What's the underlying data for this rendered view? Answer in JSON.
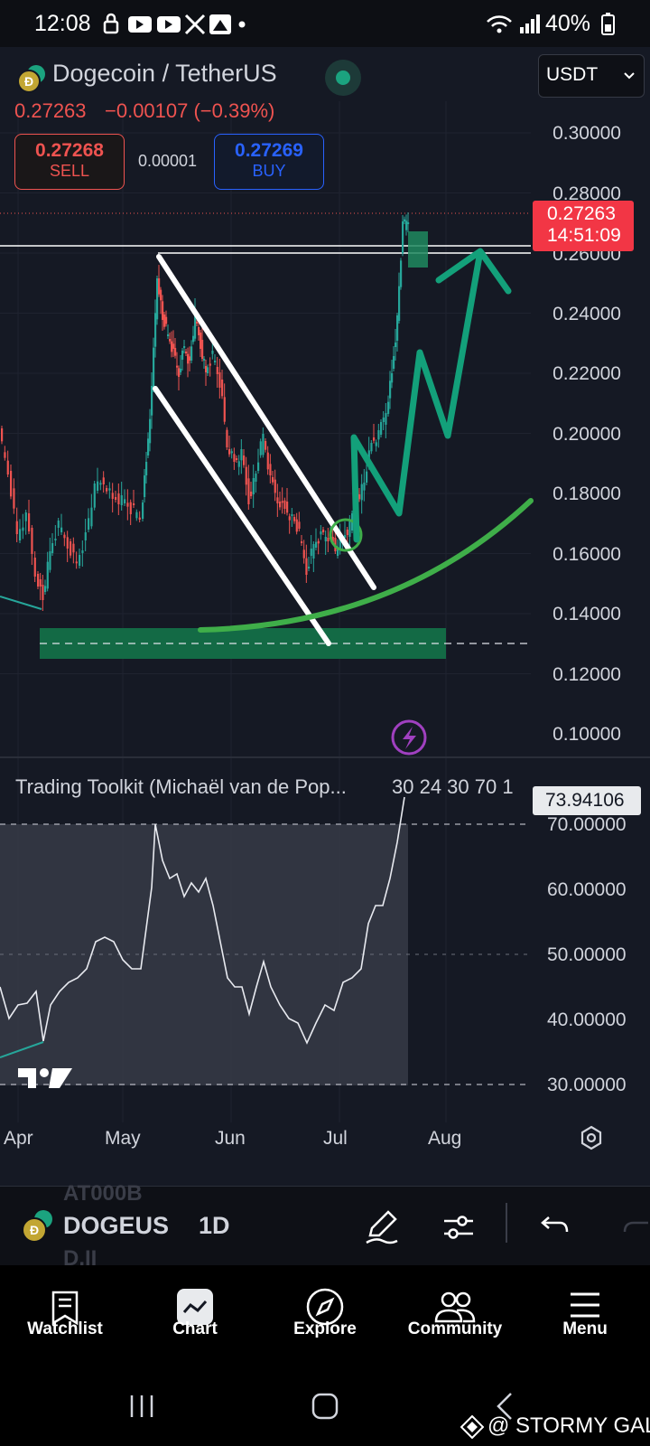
{
  "status": {
    "time": "12:08",
    "battery": "40%"
  },
  "header": {
    "symbol_title": "Dogecoin / TetherUS",
    "last_price": "0.27263",
    "change": "−0.00107 (−0.39%)",
    "currency": "USDT",
    "sell_price": "0.27268",
    "sell_label": "SELL",
    "spread": "0.00001",
    "buy_price": "0.27269",
    "buy_label": "BUY"
  },
  "price_axis": {
    "labels": [
      "0.30000",
      "0.28000",
      "0.26000",
      "0.24000",
      "0.22000",
      "0.20000",
      "0.18000",
      "0.16000",
      "0.14000",
      "0.12000",
      "0.10000"
    ],
    "current_price": "0.27263",
    "countdown": "14:51:09"
  },
  "indicator": {
    "title": "Trading Toolkit (Michaël van de Pop...",
    "params": "30 24 30 70 1",
    "current_value": "73.94106",
    "axis_labels": [
      "70.00000",
      "60.00000",
      "50.00000",
      "40.00000",
      "30.00000"
    ]
  },
  "time_axis": {
    "labels": [
      "Apr",
      "May",
      "Jun",
      "Jul",
      "Aug"
    ]
  },
  "toolbar": {
    "ticker_ghost_top": "AT000B",
    "ticker": "DOGEUS",
    "ticker_ghost_bottom": "D.II",
    "interval": "1D"
  },
  "nav": {
    "items": [
      {
        "label": "Watchlist",
        "icon": "watchlist-icon"
      },
      {
        "label": "Chart",
        "icon": "chart-icon"
      },
      {
        "label": "Explore",
        "icon": "compass-icon"
      },
      {
        "label": "Community",
        "icon": "community-icon"
      },
      {
        "label": "Menu",
        "icon": "menu-icon"
      }
    ]
  },
  "watermark": "@ STORMY GAL",
  "colors": {
    "up": "#26a69a",
    "down": "#ef5350",
    "accent_green": "#13a07a",
    "curve_green": "#3fae49",
    "buy_blue": "#2962ff"
  }
}
